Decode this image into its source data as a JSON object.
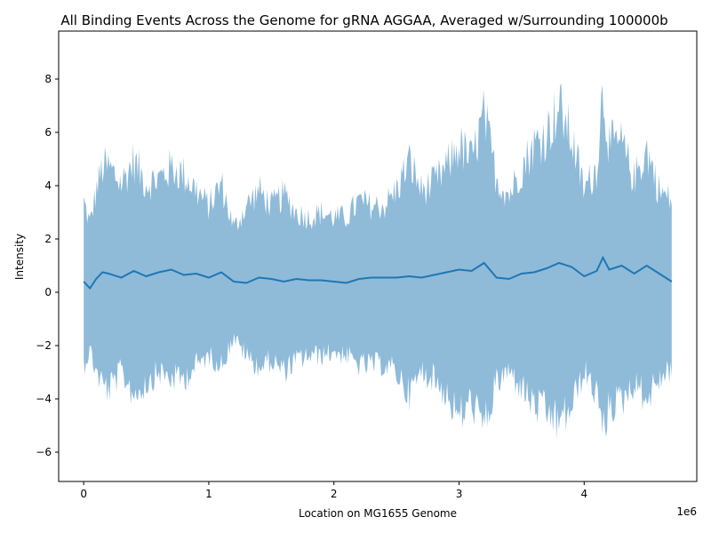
{
  "chart_data": {
    "type": "area",
    "title": "All Binding Events Across the Genome for gRNA AGGAA, Averaged w/Surrounding 100000b",
    "xlabel": "Location on MG1655 Genome",
    "ylabel": "Intensity",
    "x_offset_label": "1e6",
    "xlim": [
      -200000,
      4900000
    ],
    "ylim": [
      -7.1,
      9.8
    ],
    "x_ticks": [
      0,
      1000000,
      2000000,
      3000000,
      4000000
    ],
    "x_tick_labels": [
      "0",
      "1",
      "2",
      "3",
      "4"
    ],
    "y_ticks": [
      -6,
      -4,
      -2,
      0,
      2,
      4,
      6,
      8
    ],
    "y_tick_labels": [
      "−6",
      "−4",
      "−2",
      "0",
      "2",
      "4",
      "6",
      "8"
    ],
    "grid": false,
    "colors": {
      "mean_line": "#1f77b4",
      "band": "#1f77b4",
      "band_opacity": 0.5
    },
    "series": [
      {
        "kind": "line",
        "x": [
          0,
          50000,
          100000,
          150000,
          200000,
          300000,
          400000,
          500000,
          600000,
          700000,
          800000,
          900000,
          1000000,
          1100000,
          1200000,
          1300000,
          1400000,
          1500000,
          1600000,
          1700000,
          1800000,
          1900000,
          2000000,
          2100000,
          2200000,
          2300000,
          2400000,
          2500000,
          2600000,
          2700000,
          2800000,
          2900000,
          3000000,
          3100000,
          3200000,
          3300000,
          3400000,
          3500000,
          3600000,
          3700000,
          3800000,
          3900000,
          4000000,
          4100000,
          4150000,
          4200000,
          4300000,
          4400000,
          4500000,
          4600000,
          4700000
        ],
        "y": [
          0.4,
          0.15,
          0.5,
          0.75,
          0.7,
          0.55,
          0.8,
          0.6,
          0.75,
          0.85,
          0.65,
          0.7,
          0.55,
          0.75,
          0.4,
          0.35,
          0.55,
          0.5,
          0.4,
          0.5,
          0.45,
          0.45,
          0.4,
          0.35,
          0.5,
          0.55,
          0.55,
          0.55,
          0.6,
          0.55,
          0.65,
          0.75,
          0.85,
          0.8,
          1.1,
          0.55,
          0.5,
          0.7,
          0.75,
          0.9,
          1.1,
          0.95,
          0.6,
          0.8,
          1.3,
          0.85,
          1.0,
          0.7,
          1.0,
          0.7,
          0.4
        ]
      },
      {
        "kind": "band",
        "x": [
          0,
          50000,
          100000,
          150000,
          200000,
          300000,
          400000,
          500000,
          600000,
          700000,
          800000,
          900000,
          1000000,
          1100000,
          1200000,
          1300000,
          1400000,
          1500000,
          1600000,
          1700000,
          1800000,
          1900000,
          2000000,
          2100000,
          2200000,
          2300000,
          2400000,
          2500000,
          2600000,
          2700000,
          2800000,
          2900000,
          3000000,
          3100000,
          3200000,
          3300000,
          3400000,
          3500000,
          3600000,
          3700000,
          3800000,
          3900000,
          4000000,
          4100000,
          4150000,
          4200000,
          4300000,
          4400000,
          4500000,
          4600000,
          4700000
        ],
        "upper": [
          4.0,
          3.0,
          4.5,
          5.5,
          5.5,
          4.8,
          5.8,
          4.8,
          5.0,
          5.5,
          5.2,
          4.5,
          3.8,
          4.8,
          2.8,
          3.8,
          4.5,
          3.8,
          4.3,
          3.5,
          3.3,
          3.5,
          3.3,
          3.3,
          4.0,
          3.8,
          3.8,
          4.5,
          5.8,
          4.5,
          4.8,
          5.5,
          6.5,
          5.8,
          7.8,
          5.0,
          4.3,
          5.5,
          6.5,
          7.0,
          8.2,
          6.8,
          4.5,
          5.5,
          9.0,
          6.5,
          6.5,
          5.0,
          6.3,
          4.5,
          4.0
        ],
        "lower": [
          -3.2,
          -2.5,
          -3.5,
          -4.0,
          -4.3,
          -3.5,
          -4.5,
          -4.0,
          -3.5,
          -3.8,
          -3.8,
          -3.2,
          -2.8,
          -3.2,
          -2.0,
          -2.8,
          -3.3,
          -3.0,
          -3.5,
          -3.0,
          -2.8,
          -2.8,
          -2.6,
          -2.8,
          -3.2,
          -3.2,
          -3.2,
          -3.5,
          -4.5,
          -3.5,
          -3.8,
          -4.5,
          -5.5,
          -4.8,
          -6.0,
          -4.0,
          -3.5,
          -4.2,
          -5.0,
          -5.3,
          -5.8,
          -5.0,
          -3.5,
          -4.5,
          -6.2,
          -5.0,
          -4.8,
          -4.0,
          -4.7,
          -3.8,
          -3.4
        ]
      }
    ]
  }
}
